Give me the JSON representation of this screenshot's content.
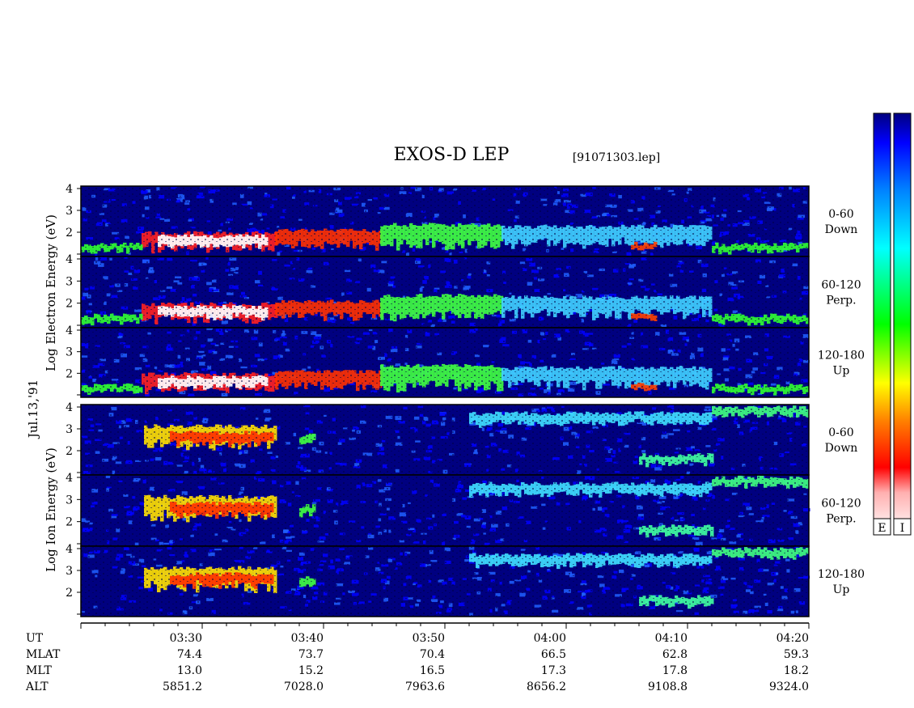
{
  "title": "EXOS-D LEP",
  "file_label": "[91071303.lep]",
  "date_label": "Jul.13,'91",
  "electron_axis_label": [
    "Log",
    "Electron",
    "Energy",
    "(eV)"
  ],
  "ion_axis_label": [
    "Log",
    "Ion",
    "Energy",
    "(eV)"
  ],
  "colorbar_labels": [
    "E",
    "I"
  ],
  "colors": {
    "background": "#000080",
    "low": "#0000ff",
    "mid": "#00ff00",
    "high": "#ff0000",
    "max": "#ffffff"
  },
  "chart_data": {
    "type": "heatmap",
    "title": "EXOS-D LEP",
    "x_range_minutes": [
      -10,
      50
    ],
    "y_ticks": [
      "1",
      "2",
      "3",
      "4"
    ],
    "panels": [
      {
        "group": "Electron",
        "angle": "0-60",
        "direction": "Down"
      },
      {
        "group": "Electron",
        "angle": "60-120",
        "direction": "Perp."
      },
      {
        "group": "Electron",
        "angle": "120-180",
        "direction": "Up"
      },
      {
        "group": "Ion",
        "angle": "0-60",
        "direction": "Down"
      },
      {
        "group": "Ion",
        "angle": "60-120",
        "direction": "Perp."
      },
      {
        "group": "Ion",
        "angle": "120-180",
        "direction": "Up"
      }
    ],
    "row_labels": [
      "UT",
      "MLAT",
      "MLT",
      "ALT"
    ],
    "ephemeris": [
      {
        "ut": "03:30",
        "mlat": "74.4",
        "mlt": "13.0",
        "alt": "5851.2"
      },
      {
        "ut": "03:40",
        "mlat": "73.7",
        "mlt": "15.2",
        "alt": "7028.0"
      },
      {
        "ut": "03:50",
        "mlat": "70.4",
        "mlt": "16.5",
        "alt": "7963.6"
      },
      {
        "ut": "04:00",
        "mlat": "66.5",
        "mlt": "17.3",
        "alt": "8656.2"
      },
      {
        "ut": "04:10",
        "mlat": "62.8",
        "mlt": "17.8",
        "alt": "9108.8"
      },
      {
        "ut": "04:20",
        "mlat": "59.3",
        "mlt": "18.2",
        "alt": "9324.0"
      }
    ]
  }
}
